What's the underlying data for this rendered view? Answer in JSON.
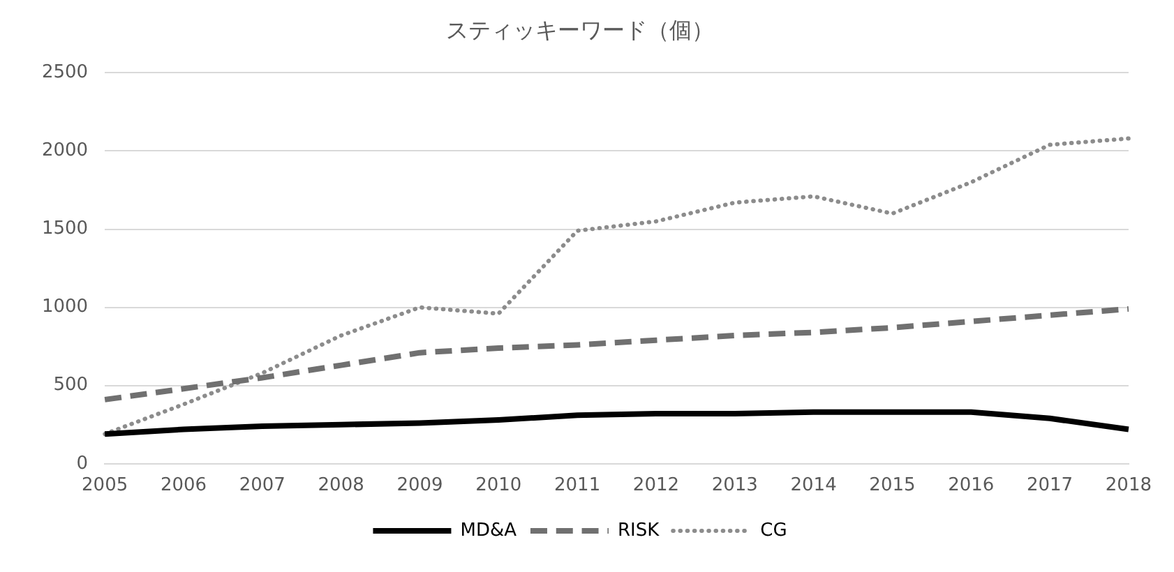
{
  "chart_data": {
    "type": "line",
    "title": "スティッキーワード（個）",
    "categories": [
      "2005",
      "2006",
      "2007",
      "2008",
      "2009",
      "2010",
      "2011",
      "2012",
      "2013",
      "2014",
      "2015",
      "2016",
      "2017",
      "2018"
    ],
    "series": [
      {
        "name": "MD&A",
        "color": "#000000",
        "line_style": "solid",
        "values": [
          190,
          220,
          240,
          250,
          260,
          280,
          310,
          320,
          320,
          330,
          330,
          330,
          290,
          220
        ]
      },
      {
        "name": "RISK",
        "color": "#707070",
        "line_style": "dashed",
        "values": [
          410,
          480,
          550,
          630,
          710,
          740,
          760,
          790,
          820,
          840,
          870,
          910,
          950,
          990
        ]
      },
      {
        "name": "CG",
        "color": "#8c8c8c",
        "line_style": "dotted",
        "values": [
          190,
          380,
          580,
          820,
          1000,
          960,
          1490,
          1550,
          1670,
          1710,
          1600,
          1800,
          2040,
          2080
        ]
      }
    ],
    "ylim": [
      0,
      2500
    ],
    "yticks": [
      0,
      500,
      1000,
      1500,
      2000,
      2500
    ],
    "grid": "y",
    "legend": "bottom",
    "marker": "none"
  }
}
